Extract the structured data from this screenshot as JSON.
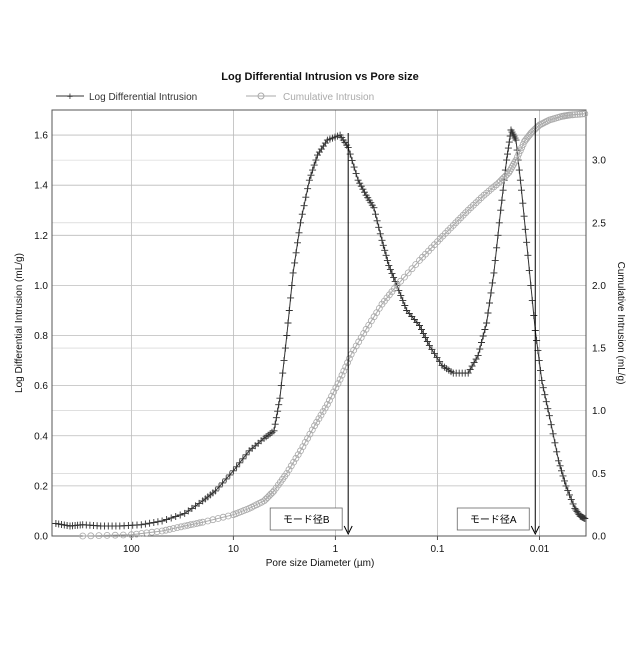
{
  "chart_data": {
    "type": "line",
    "title": "Log Differential Intrusion vs Pore size",
    "xlabel": "Pore size Diameter (µm)",
    "ylabel": "Log Differential Intrusion (mL/g)",
    "y2label": "Cumulative Intrusion (mL/g)",
    "x_scale": "log-reversed",
    "xlim": [
      600,
      0.0035
    ],
    "ylim": [
      0,
      1.7
    ],
    "y2lim": [
      0,
      3.4
    ],
    "grid": true,
    "legend_position": "top-left",
    "x_ticks": [
      {
        "value": 100,
        "label": "100"
      },
      {
        "value": 10,
        "label": "10"
      },
      {
        "value": 1,
        "label": "1"
      },
      {
        "value": 0.1,
        "label": "0.1"
      },
      {
        "value": 0.01,
        "label": "0.01"
      }
    ],
    "y_ticks": [
      {
        "value": 0.0,
        "label": "0.0"
      },
      {
        "value": 0.2,
        "label": "0.2"
      },
      {
        "value": 0.4,
        "label": "0.4"
      },
      {
        "value": 0.6,
        "label": "0.6"
      },
      {
        "value": 0.8,
        "label": "0.8"
      },
      {
        "value": 1.0,
        "label": "1.0"
      },
      {
        "value": 1.2,
        "label": "1.2"
      },
      {
        "value": 1.4,
        "label": "1.4"
      },
      {
        "value": 1.6,
        "label": "1.6"
      }
    ],
    "y2_ticks": [
      {
        "value": 0.0,
        "label": "0.0"
      },
      {
        "value": 0.5,
        "label": "0.5"
      },
      {
        "value": 1.0,
        "label": "1.0"
      },
      {
        "value": 1.5,
        "label": "1.5"
      },
      {
        "value": 2.0,
        "label": "2.0"
      },
      {
        "value": 2.5,
        "label": "2.5"
      },
      {
        "value": 3.0,
        "label": "3.0"
      }
    ],
    "series": [
      {
        "name": "Log Differential Intrusion",
        "axis": "left",
        "marker": "plus",
        "color": "#333333",
        "points": [
          [
            550,
            0.05
          ],
          [
            400,
            0.04
          ],
          [
            300,
            0.045
          ],
          [
            200,
            0.04
          ],
          [
            130,
            0.04
          ],
          [
            80,
            0.045
          ],
          [
            50,
            0.06
          ],
          [
            30,
            0.09
          ],
          [
            20,
            0.14
          ],
          [
            15,
            0.18
          ],
          [
            10,
            0.26
          ],
          [
            7,
            0.34
          ],
          [
            5,
            0.39
          ],
          [
            4,
            0.42
          ],
          [
            3.5,
            0.55
          ],
          [
            3.0,
            0.8
          ],
          [
            2.6,
            1.05
          ],
          [
            2.2,
            1.25
          ],
          [
            1.8,
            1.42
          ],
          [
            1.5,
            1.52
          ],
          [
            1.2,
            1.58
          ],
          [
            0.9,
            1.6
          ],
          [
            0.75,
            1.55
          ],
          [
            0.6,
            1.42
          ],
          [
            0.5,
            1.36
          ],
          [
            0.42,
            1.31
          ],
          [
            0.35,
            1.18
          ],
          [
            0.3,
            1.08
          ],
          [
            0.25,
            1.0
          ],
          [
            0.2,
            0.9
          ],
          [
            0.15,
            0.84
          ],
          [
            0.12,
            0.76
          ],
          [
            0.09,
            0.68
          ],
          [
            0.07,
            0.65
          ],
          [
            0.05,
            0.65
          ],
          [
            0.04,
            0.72
          ],
          [
            0.033,
            0.85
          ],
          [
            0.028,
            1.05
          ],
          [
            0.024,
            1.3
          ],
          [
            0.021,
            1.5
          ],
          [
            0.019,
            1.62
          ],
          [
            0.017,
            1.58
          ],
          [
            0.015,
            1.38
          ],
          [
            0.013,
            1.12
          ],
          [
            0.011,
            0.82
          ],
          [
            0.0095,
            0.62
          ],
          [
            0.008,
            0.48
          ],
          [
            0.0065,
            0.3
          ],
          [
            0.0055,
            0.2
          ],
          [
            0.0045,
            0.11
          ],
          [
            0.004,
            0.08
          ],
          [
            0.0036,
            0.07
          ]
        ]
      },
      {
        "name": "Cumulative Intrusion",
        "axis": "right",
        "marker": "circle",
        "color": "#aaaaaa",
        "points": [
          [
            300,
            0.0
          ],
          [
            100,
            0.01
          ],
          [
            50,
            0.04
          ],
          [
            30,
            0.08
          ],
          [
            20,
            0.11
          ],
          [
            10,
            0.17
          ],
          [
            7,
            0.22
          ],
          [
            5,
            0.28
          ],
          [
            4,
            0.36
          ],
          [
            3,
            0.5
          ],
          [
            2.2,
            0.68
          ],
          [
            1.6,
            0.88
          ],
          [
            1.2,
            1.05
          ],
          [
            0.9,
            1.25
          ],
          [
            0.7,
            1.45
          ],
          [
            0.5,
            1.65
          ],
          [
            0.35,
            1.85
          ],
          [
            0.25,
            2.0
          ],
          [
            0.15,
            2.2
          ],
          [
            0.1,
            2.35
          ],
          [
            0.07,
            2.48
          ],
          [
            0.05,
            2.6
          ],
          [
            0.035,
            2.72
          ],
          [
            0.025,
            2.82
          ],
          [
            0.02,
            2.9
          ],
          [
            0.017,
            3.0
          ],
          [
            0.014,
            3.15
          ],
          [
            0.012,
            3.22
          ],
          [
            0.01,
            3.28
          ],
          [
            0.008,
            3.32
          ],
          [
            0.006,
            3.35
          ],
          [
            0.005,
            3.36
          ],
          [
            0.0036,
            3.37
          ]
        ]
      }
    ],
    "annotations": [
      {
        "label": "モード径B",
        "x": 0.75,
        "y_top": 1.6
      },
      {
        "label": "モード径A",
        "x": 0.011,
        "y_top": 1.66
      }
    ]
  }
}
